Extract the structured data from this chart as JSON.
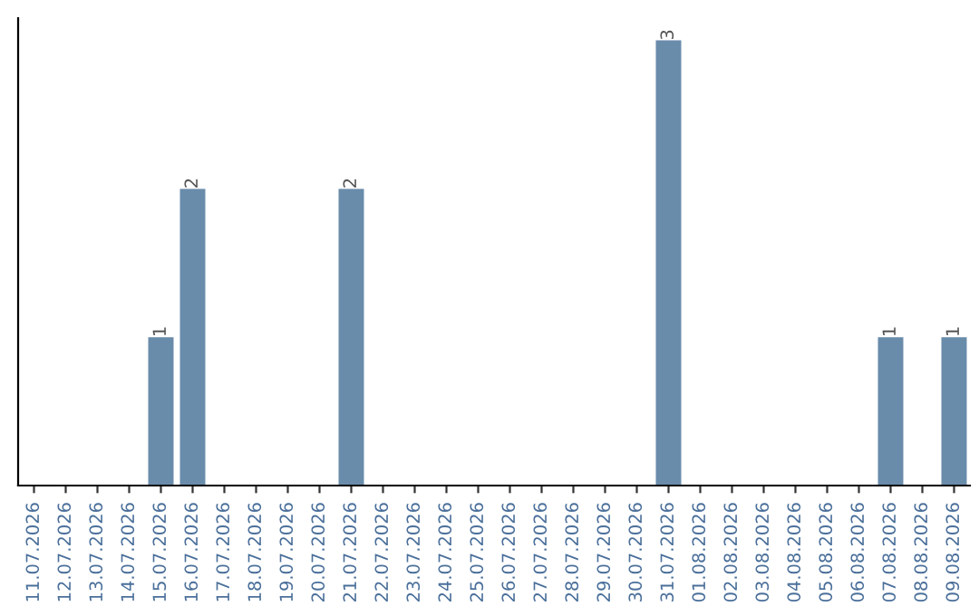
{
  "chart_data": {
    "type": "bar",
    "categories": [
      "11.07.2026",
      "12.07.2026",
      "13.07.2026",
      "14.07.2026",
      "15.07.2026",
      "16.07.2026",
      "17.07.2026",
      "18.07.2026",
      "19.07.2026",
      "20.07.2026",
      "21.07.2026",
      "22.07.2026",
      "23.07.2026",
      "24.07.2026",
      "25.07.2026",
      "26.07.2026",
      "27.07.2026",
      "28.07.2026",
      "29.07.2026",
      "30.07.2026",
      "31.07.2026",
      "01.08.2026",
      "02.08.2026",
      "03.08.2026",
      "04.08.2026",
      "05.08.2026",
      "06.08.2026",
      "07.08.2026",
      "08.08.2026",
      "09.08.2026"
    ],
    "values": [
      0,
      0,
      0,
      0,
      1,
      2,
      0,
      0,
      0,
      0,
      2,
      0,
      0,
      0,
      0,
      0,
      0,
      0,
      0,
      0,
      3,
      0,
      0,
      0,
      0,
      0,
      0,
      1,
      0,
      1
    ],
    "color": "#6a8cab",
    "value_labels": [
      null,
      null,
      null,
      null,
      "1",
      "2",
      null,
      null,
      null,
      null,
      "2",
      null,
      null,
      null,
      null,
      null,
      null,
      null,
      null,
      null,
      "3",
      null,
      null,
      null,
      null,
      null,
      null,
      "1",
      null,
      "1"
    ],
    "tick_labels": "x",
    "grid": false,
    "legend": false
  }
}
